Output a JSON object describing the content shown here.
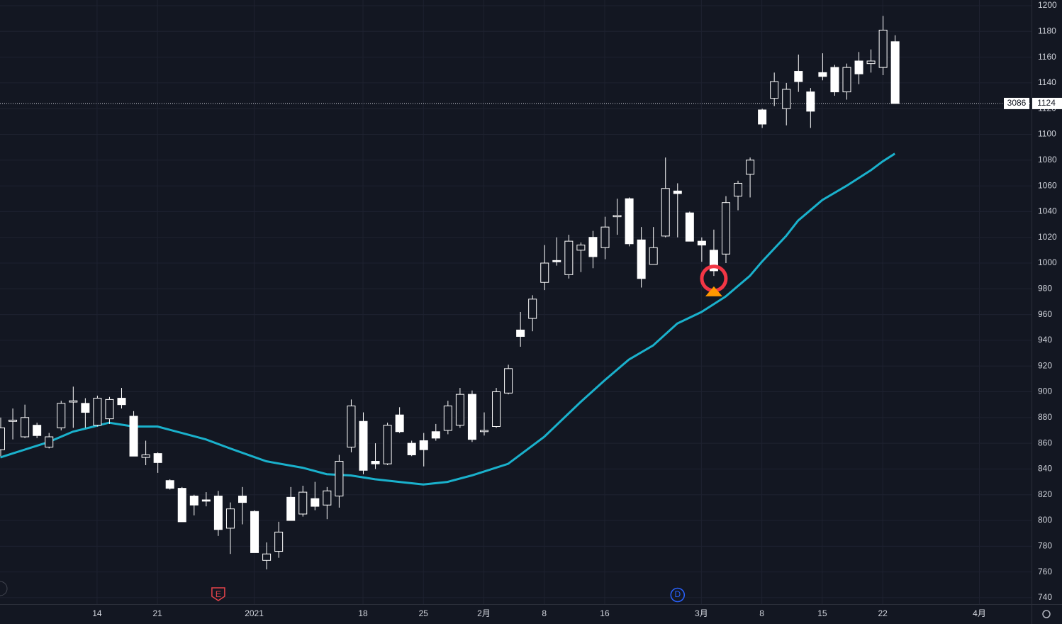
{
  "chart_data": {
    "type": "candlestick",
    "symbol": "3086",
    "open": [
      855,
      877,
      865,
      874,
      857,
      872,
      892,
      891,
      874,
      879,
      895,
      881,
      849,
      852,
      831,
      825,
      819,
      816,
      819,
      794,
      819,
      807,
      769,
      776,
      818,
      805,
      817,
      812,
      819,
      857,
      877,
      846,
      844,
      882,
      860,
      862,
      869,
      870,
      874,
      898,
      869,
      873,
      899,
      948,
      957,
      985,
      1002,
      991,
      1010,
      1020,
      1012,
      1036,
      1050,
      1018,
      999,
      1021,
      1056,
      1039,
      1017,
      1010,
      1007,
      1052,
      1069,
      1119,
      1128,
      1120,
      1149,
      1133,
      1148,
      1152,
      1133,
      1157,
      1155,
      1152,
      1172
    ],
    "high": [
      880,
      887,
      890,
      876,
      868,
      893,
      904,
      895,
      897,
      896,
      903,
      885,
      862,
      853,
      832,
      826,
      820,
      822,
      823,
      814,
      826,
      808,
      783,
      799,
      826,
      827,
      830,
      826,
      851,
      894,
      884,
      860,
      876,
      888,
      862,
      868,
      875,
      893,
      903,
      901,
      884,
      903,
      921,
      962,
      975,
      1014,
      1020,
      1022,
      1016,
      1025,
      1036,
      1050,
      1051,
      1028,
      1028,
      1082,
      1062,
      1040,
      1020,
      1026,
      1052,
      1064,
      1082,
      1120,
      1148,
      1140,
      1162,
      1136,
      1163,
      1154,
      1155,
      1164,
      1166,
      1192,
      1177
    ],
    "low": [
      850,
      863,
      864,
      864,
      856,
      870,
      872,
      872,
      873,
      875,
      887,
      850,
      843,
      837,
      824,
      800,
      804,
      811,
      788,
      774,
      797,
      775,
      762,
      771,
      800,
      803,
      808,
      801,
      810,
      853,
      836,
      840,
      843,
      868,
      850,
      842,
      862,
      867,
      872,
      861,
      866,
      872,
      898,
      935,
      947,
      979,
      998,
      988,
      993,
      996,
      1003,
      1022,
      1013,
      981,
      999,
      1020,
      1020,
      1017,
      1001,
      990,
      1000,
      1041,
      1051,
      1105,
      1122,
      1107,
      1133,
      1105,
      1142,
      1130,
      1127,
      1139,
      1148,
      1146,
      1124
    ],
    "close": [
      872,
      878,
      880,
      866,
      865,
      891,
      893,
      884,
      895,
      894,
      890,
      850,
      851,
      845,
      825,
      799,
      812,
      815,
      793,
      809,
      814,
      775,
      774,
      791,
      800,
      822,
      811,
      823,
      846,
      889,
      839,
      844,
      874,
      869,
      851,
      855,
      864,
      889,
      898,
      863,
      870,
      900,
      918,
      943,
      972,
      1000,
      1001,
      1017,
      1014,
      1005,
      1028,
      1037,
      1015,
      988,
      1012,
      1058,
      1054,
      1017,
      1014,
      994,
      1047,
      1062,
      1080,
      1108,
      1141,
      1135,
      1141,
      1118,
      1145,
      1133,
      1152,
      1147,
      1157,
      1181,
      1124
    ],
    "ma": {
      "color": "#1ab1cc",
      "x": [
        0,
        1,
        4,
        6,
        9,
        11,
        13,
        15,
        17,
        19,
        22,
        25,
        27,
        29,
        31,
        33,
        35,
        37,
        39,
        42,
        45,
        48,
        50,
        52,
        54,
        56,
        58,
        60,
        62,
        63,
        65,
        66,
        68,
        70,
        72,
        73,
        74
      ],
      "values": [
        849,
        852,
        861,
        869,
        876,
        873,
        873,
        868,
        863,
        856,
        846,
        841,
        836,
        835,
        832,
        830,
        828,
        830,
        835,
        844,
        865,
        892,
        909,
        925,
        936,
        953,
        962,
        974,
        990,
        1001,
        1021,
        1033,
        1049,
        1060,
        1072,
        1079,
        1085
      ]
    },
    "price_line": {
      "value": 1124,
      "label": "1124"
    },
    "signal": {
      "x": 59,
      "value": 988,
      "arrow_value": 978
    },
    "events": [
      {
        "label": "E",
        "x": 18,
        "color": "#e5434a"
      },
      {
        "label": "D",
        "x": 56,
        "color": "#2962ff"
      }
    ],
    "xlim": [
      -0.03,
      85.31
    ],
    "xticks": [
      {
        "value": 8,
        "label": "14"
      },
      {
        "value": 13,
        "label": "21"
      },
      {
        "value": 21,
        "label": "2021"
      },
      {
        "value": 30,
        "label": "18"
      },
      {
        "value": 35,
        "label": "25"
      },
      {
        "value": 40,
        "label": "2月"
      },
      {
        "value": 45,
        "label": "8"
      },
      {
        "value": 50,
        "label": "16"
      },
      {
        "value": 58,
        "label": "3月"
      },
      {
        "value": 63,
        "label": "8"
      },
      {
        "value": 68,
        "label": "15"
      },
      {
        "value": 73,
        "label": "22"
      },
      {
        "value": 81,
        "label": "4月"
      }
    ],
    "ylim": [
      735,
      1204.4
    ],
    "yticks": [
      740,
      760,
      780,
      800,
      820,
      840,
      860,
      880,
      900,
      920,
      940,
      960,
      980,
      1000,
      1020,
      1040,
      1060,
      1080,
      1100,
      1120,
      1140,
      1160,
      1180,
      1200
    ],
    "grid": true
  }
}
